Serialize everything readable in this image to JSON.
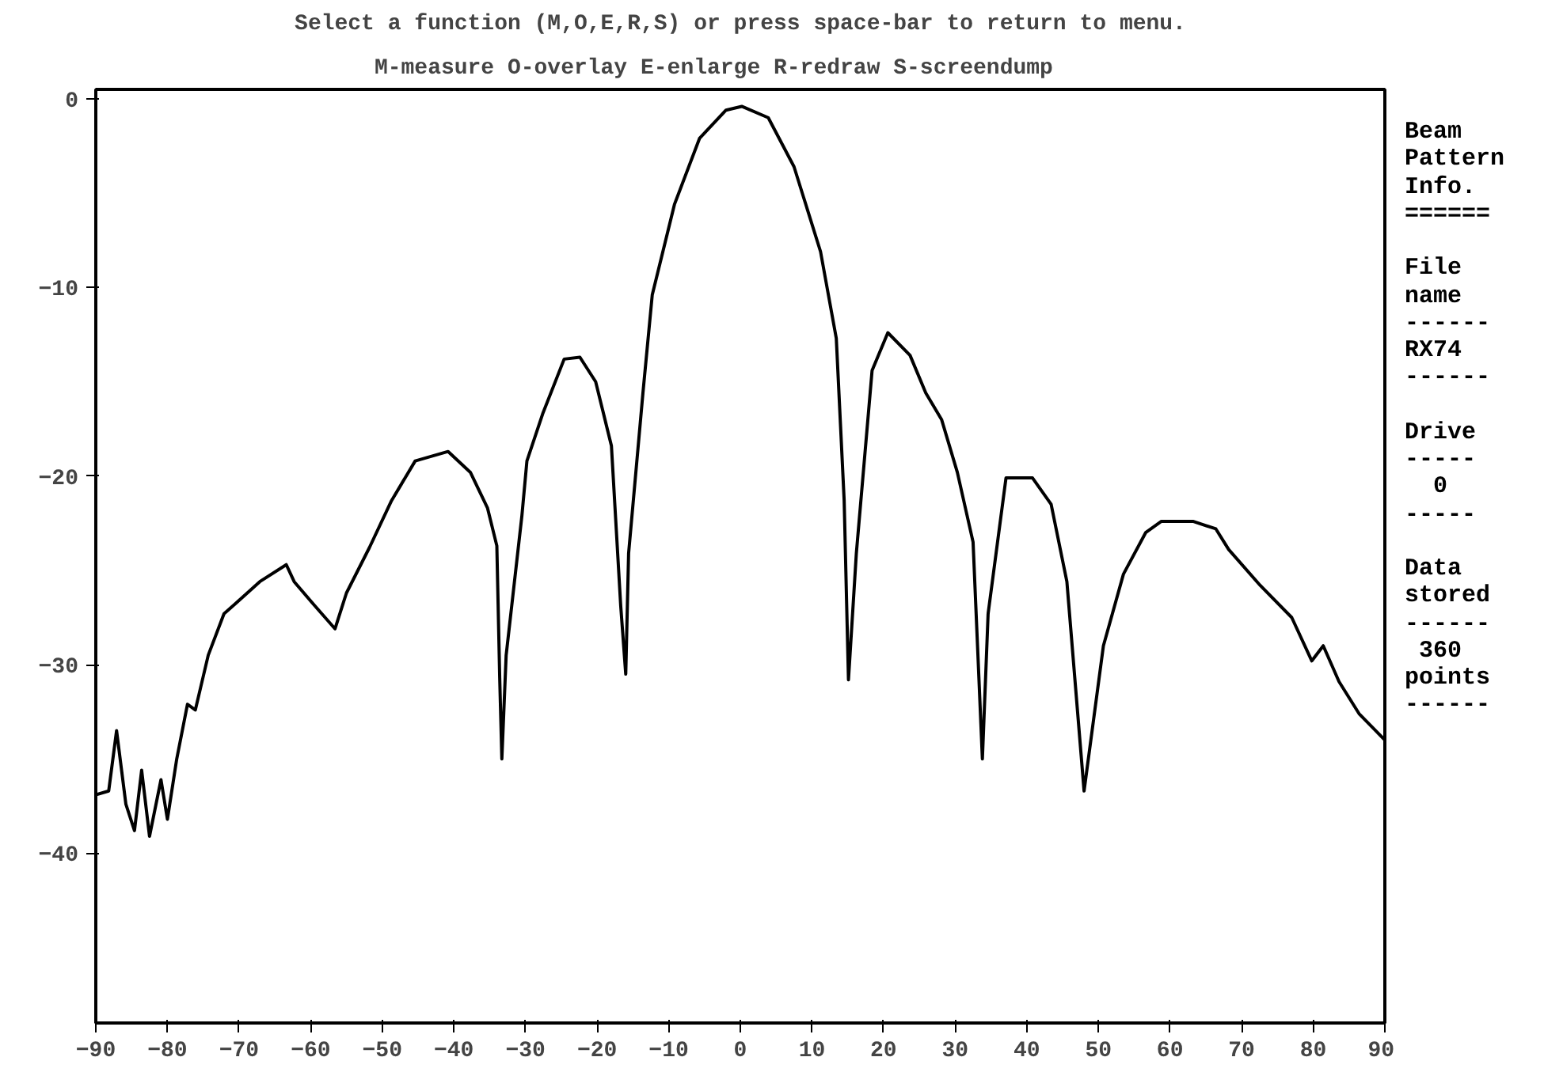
{
  "chart_data": {
    "type": "line",
    "title": "Select a function (M,O,E,R,S) or press space-bar to return to menu.",
    "subtitle": "M-measure  O-overlay  E-enlarge  R-redraw  S-screendump",
    "x": [
      -90,
      -88.2,
      -87.1,
      -85.8,
      -84.6,
      -83.6,
      -82.5,
      -80.9,
      -80.0,
      -78.7,
      -77.2,
      -76.1,
      -74.3,
      -72.1,
      -70.6,
      -67.1,
      -63.4,
      -62.3,
      -59.6,
      -56.6,
      -55.0,
      -51.8,
      -48.7,
      -45.4,
      -40.8,
      -37.7,
      -35.3,
      -34.0,
      -33.6,
      -33.3,
      -32.7,
      -30.5,
      -29.8,
      -27.6,
      -24.6,
      -22.4,
      -20.2,
      -18.0,
      -16.7,
      -16.0,
      -15.6,
      -13.6,
      -12.3,
      -9.2,
      -5.7,
      -2.0,
      0.2,
      3.9,
      7.5,
      11.2,
      13.4,
      14.5,
      15.1,
      16.2,
      18.4,
      20.6,
      23.7,
      25.9,
      28.1,
      30.3,
      32.5,
      33.8,
      34.6,
      37.1,
      40.8,
      43.4,
      45.6,
      48.0,
      50.7,
      53.5,
      56.6,
      58.8,
      63.2,
      66.4,
      68.2,
      72.6,
      77.0,
      79.8,
      81.4,
      83.6,
      86.4,
      90
    ],
    "series": [
      {
        "color": "#000000",
        "values": [
          -36.9,
          -36.7,
          -33.5,
          -37.4,
          -38.8,
          -35.6,
          -39.1,
          -36.1,
          -38.2,
          -35.0,
          -32.1,
          -32.4,
          -29.5,
          -27.3,
          -26.8,
          -25.6,
          -24.7,
          -25.6,
          -26.8,
          -28.1,
          -26.2,
          -23.8,
          -21.3,
          -19.2,
          -18.7,
          -19.8,
          -21.7,
          -23.7,
          -30.7,
          -35.0,
          -29.5,
          -22.1,
          -19.2,
          -16.7,
          -13.8,
          -13.7,
          -15.0,
          -18.4,
          -26.9,
          -30.5,
          -24.1,
          -15.6,
          -10.4,
          -5.6,
          -2.1,
          -0.6,
          -0.4,
          -1.0,
          -3.6,
          -8.1,
          -12.7,
          -21.3,
          -30.8,
          -24.1,
          -14.4,
          -12.4,
          -13.6,
          -15.6,
          -17.0,
          -19.8,
          -23.5,
          -35.0,
          -27.3,
          -20.1,
          -20.1,
          -21.5,
          -25.6,
          -36.7,
          -29.0,
          -25.2,
          -23.0,
          -22.4,
          -22.4,
          -22.8,
          -23.9,
          -25.8,
          -27.5,
          -29.8,
          -29.0,
          -30.9,
          -32.6,
          -34.0
        ]
      }
    ],
    "xlim": [
      -90,
      90
    ],
    "xticks": [
      -90,
      -80,
      -70,
      -60,
      -50,
      -40,
      -30,
      -20,
      -10,
      0,
      10,
      20,
      30,
      40,
      50,
      60,
      70,
      80,
      90
    ],
    "ylim": [
      -49,
      0.5
    ],
    "yticks": [
      0,
      -10,
      -20,
      -30,
      -40
    ],
    "line_style": "solid",
    "annotations": [
      "Beam\nPattern\nInfo.\n======",
      "File\nname\n------\nRX74\n------",
      "Drive\n-----\n  0\n-----",
      "Data\nstored\n------\n 360\npoints\n------"
    ]
  }
}
